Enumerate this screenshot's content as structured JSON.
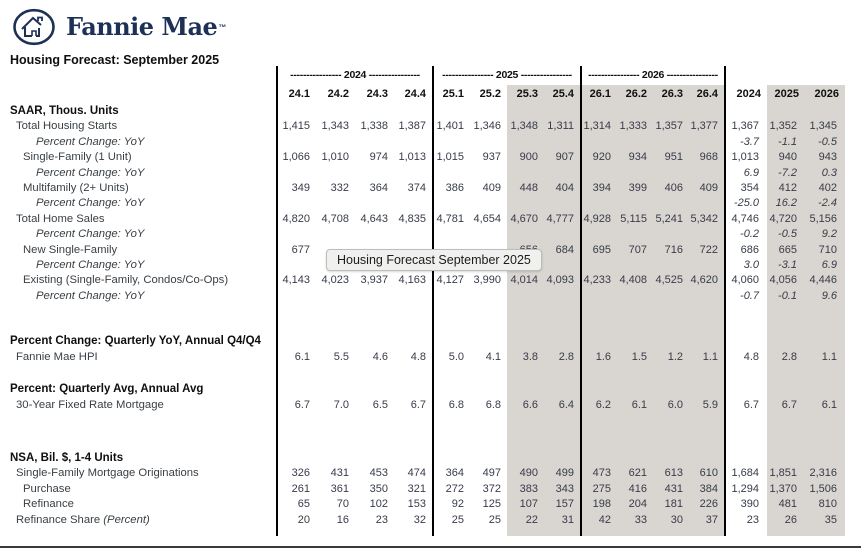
{
  "header": {
    "logo_text": "Fannie Mae",
    "logo_tm": "™",
    "title": "Housing Forecast: September 2025"
  },
  "tooltip": {
    "text": "Housing Forecast September 2025"
  },
  "colors": {
    "navy": "#1d3157",
    "shade": "#d9d5d0",
    "number": "#373c49",
    "label": "#3a4045"
  },
  "table": {
    "year_groups": [
      "---------------- 2024 ----------------",
      "---------------- 2025 ----------------",
      "---------------- 2026 ----------------"
    ],
    "quarter_headers": [
      "24.1",
      "24.2",
      "24.3",
      "24.4",
      "25.1",
      "25.2",
      "25.3",
      "25.4",
      "26.1",
      "26.2",
      "26.3",
      "26.4"
    ],
    "annual_headers": [
      "2024",
      "2025",
      "2026"
    ],
    "rows": [
      {
        "label": "SAAR, Thous. Units",
        "style": "section"
      },
      {
        "label": "Total Housing Starts",
        "style": "item1",
        "cells": [
          "1,415",
          "1,343",
          "1,338",
          "1,387",
          "1,401",
          "1,346",
          "1,348",
          "1,311",
          "1,314",
          "1,333",
          "1,357",
          "1,377",
          "1,367",
          "1,352",
          "1,345"
        ]
      },
      {
        "label": "Percent Change: YoY",
        "style": "pct",
        "cells": [
          "",
          "",
          "",
          "",
          "",
          "",
          "",
          "",
          "",
          "",
          "",
          "",
          "-3.7",
          "-1.1",
          "-0.5"
        ]
      },
      {
        "label": "Single-Family (1 Unit)",
        "style": "item2",
        "cells": [
          "1,066",
          "1,010",
          "974",
          "1,013",
          "1,015",
          "937",
          "900",
          "907",
          "920",
          "934",
          "951",
          "968",
          "1,013",
          "940",
          "943"
        ]
      },
      {
        "label": "Percent Change: YoY",
        "style": "pct",
        "cells": [
          "",
          "",
          "",
          "",
          "",
          "",
          "",
          "",
          "",
          "",
          "",
          "",
          "6.9",
          "-7.2",
          "0.3"
        ]
      },
      {
        "label": "Multifamily (2+ Units)",
        "style": "item2",
        "cells": [
          "349",
          "332",
          "364",
          "374",
          "386",
          "409",
          "448",
          "404",
          "394",
          "399",
          "406",
          "409",
          "354",
          "412",
          "402"
        ]
      },
      {
        "label": "Percent Change: YoY",
        "style": "pct",
        "cells": [
          "",
          "",
          "",
          "",
          "",
          "",
          "",
          "",
          "",
          "",
          "",
          "",
          "-25.0",
          "16.2",
          "-2.4"
        ]
      },
      {
        "label": "Total Home Sales",
        "style": "item1",
        "cells": [
          "4,820",
          "4,708",
          "4,643",
          "4,835",
          "4,781",
          "4,654",
          "4,670",
          "4,777",
          "4,928",
          "5,115",
          "5,241",
          "5,342",
          "4,746",
          "4,720",
          "5,156"
        ]
      },
      {
        "label": "Percent Change: YoY",
        "style": "pct",
        "cells": [
          "",
          "",
          "",
          "",
          "",
          "",
          "",
          "",
          "",
          "",
          "",
          "",
          "-0.2",
          "-0.5",
          "9.2"
        ]
      },
      {
        "label": "New Single-Family",
        "style": "item2",
        "cells": [
          "677",
          "",
          "",
          "",
          "",
          "",
          "656",
          "684",
          "695",
          "707",
          "716",
          "722",
          "686",
          "665",
          "710"
        ]
      },
      {
        "label": "Percent Change: YoY",
        "style": "pct",
        "cells": [
          "",
          "",
          "",
          "",
          "",
          "",
          "",
          "",
          "",
          "",
          "",
          "",
          "3.0",
          "-3.1",
          "6.9"
        ]
      },
      {
        "label": "Existing (Single-Family, Condos/Co-Ops)",
        "style": "item2",
        "cells": [
          "4,143",
          "4,023",
          "3,937",
          "4,163",
          "4,127",
          "3,990",
          "4,014",
          "4,093",
          "4,233",
          "4,408",
          "4,525",
          "4,620",
          "4,060",
          "4,056",
          "4,446"
        ]
      },
      {
        "label": "Percent Change: YoY",
        "style": "pct",
        "cells": [
          "",
          "",
          "",
          "",
          "",
          "",
          "",
          "",
          "",
          "",
          "",
          "",
          "-0.7",
          "-0.1",
          "9.6"
        ]
      },
      {
        "style": "gap-lg"
      },
      {
        "label": "Percent Change: Quarterly YoY, Annual Q4/Q4",
        "style": "section"
      },
      {
        "label": "Fannie Mae HPI",
        "style": "item1",
        "cells": [
          "6.1",
          "5.5",
          "4.6",
          "4.8",
          "5.0",
          "4.1",
          "3.8",
          "2.8",
          "1.6",
          "1.5",
          "1.2",
          "1.1",
          "4.8",
          "2.8",
          "1.1"
        ]
      },
      {
        "style": "gap-sm"
      },
      {
        "label": "Percent: Quarterly Avg, Annual Avg",
        "style": "section"
      },
      {
        "label": "30-Year Fixed Rate Mortgage",
        "style": "item1",
        "cells": [
          "6.7",
          "7.0",
          "6.5",
          "6.7",
          "6.8",
          "6.8",
          "6.6",
          "6.4",
          "6.2",
          "6.1",
          "6.0",
          "5.9",
          "6.7",
          "6.7",
          "6.1"
        ]
      },
      {
        "style": "gap-xl"
      },
      {
        "label": "NSA, Bil. $, 1-4 Units",
        "style": "section"
      },
      {
        "label": "Single-Family Mortgage Originations",
        "style": "item1",
        "cells": [
          "326",
          "431",
          "453",
          "474",
          "364",
          "497",
          "490",
          "499",
          "473",
          "621",
          "613",
          "610",
          "1,684",
          "1,851",
          "2,316"
        ]
      },
      {
        "label": "Purchase",
        "style": "item2",
        "cells": [
          "261",
          "361",
          "350",
          "321",
          "272",
          "372",
          "383",
          "343",
          "275",
          "416",
          "431",
          "384",
          "1,294",
          "1,370",
          "1,506"
        ]
      },
      {
        "label": "Refinance",
        "style": "item2",
        "cells": [
          "65",
          "70",
          "102",
          "153",
          "92",
          "125",
          "107",
          "157",
          "198",
          "204",
          "181",
          "226",
          "390",
          "481",
          "810"
        ]
      },
      {
        "label": "Refinance Share",
        "label_italic_suffix": " (Percent)",
        "style": "item1",
        "cells": [
          "20",
          "16",
          "23",
          "32",
          "25",
          "25",
          "22",
          "31",
          "42",
          "33",
          "30",
          "37",
          "23",
          "26",
          "35"
        ]
      },
      {
        "style": "gap-end"
      }
    ]
  }
}
